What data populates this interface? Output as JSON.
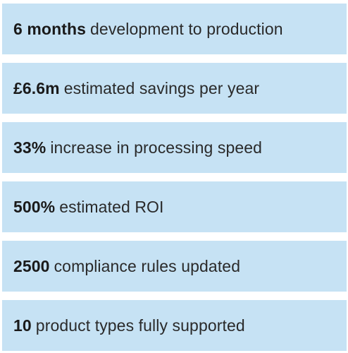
{
  "stats": [
    {
      "value": "6 months",
      "description": "development to production"
    },
    {
      "value": "£6.6m",
      "description": "estimated savings per year"
    },
    {
      "value": "33%",
      "description": "increase in processing speed"
    },
    {
      "value": "500%",
      "description": "estimated ROI"
    },
    {
      "value": "2500",
      "description": "compliance rules updated"
    },
    {
      "value": "10",
      "description": "product types fully supported"
    }
  ],
  "colors": {
    "row_background": "#c6e2f4",
    "text": "#1f1f1f"
  }
}
